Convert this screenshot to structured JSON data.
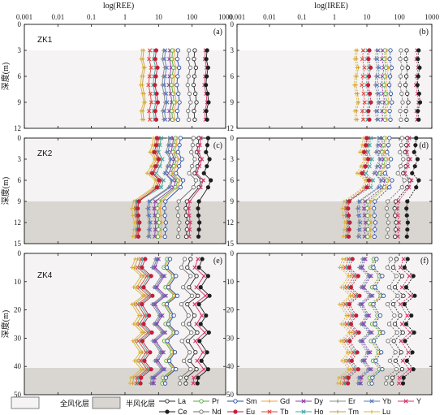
{
  "chart_data": {
    "type": "line",
    "top_axis_labels": [
      "log(REE)",
      "log(IREE)"
    ],
    "x_ticks": [
      "0.001",
      "0.01",
      "0.1",
      "1",
      "10",
      "100",
      "1000"
    ],
    "x_tick_values": [
      0.001,
      0.01,
      0.1,
      1,
      10,
      100,
      1000
    ],
    "xlim": [
      0.001,
      1000
    ],
    "x_scale": "log",
    "ylabel": "深度(m)",
    "rows": [
      {
        "hole": "ZK1",
        "ylim": [
          0,
          12
        ],
        "yticks": [
          0,
          3,
          6,
          9,
          12
        ],
        "weak_from": 12
      },
      {
        "hole": "ZK2",
        "ylim": [
          0,
          15
        ],
        "yticks": [
          0,
          3,
          6,
          9,
          12,
          15
        ],
        "weak_from": 9
      },
      {
        "hole": "ZK4",
        "ylim": [
          0,
          50
        ],
        "yticks": [
          0,
          10,
          20,
          30,
          40,
          50
        ],
        "weak_from": 40.5
      }
    ],
    "panel_labels": [
      "(a)",
      "(b)",
      "(c)",
      "(d)",
      "(e)",
      "(f)"
    ],
    "zone_legend": [
      {
        "label": "全风化层",
        "color": "#f5f3f3"
      },
      {
        "label": "半风化层",
        "color": "#d9d6d1"
      }
    ],
    "series_legend": [
      {
        "name": "La",
        "color": "#2b2b2b",
        "marker": "circle-open"
      },
      {
        "name": "Pr",
        "color": "#55a83c",
        "marker": "circle-open"
      },
      {
        "name": "Sm",
        "color": "#2a4f9e",
        "marker": "circle-open"
      },
      {
        "name": "Gd",
        "color": "#e8a63a",
        "marker": "plus"
      },
      {
        "name": "Dy",
        "color": "#8e3fa6",
        "marker": "x"
      },
      {
        "name": "Er",
        "color": "#8a8a8a",
        "marker": "plus"
      },
      {
        "name": "Yb",
        "color": "#5a78b8",
        "marker": "x"
      },
      {
        "name": "Y",
        "color": "#d6336b",
        "marker": "x"
      },
      {
        "name": "Ce",
        "color": "#1e1e1e",
        "marker": "circle-filled"
      },
      {
        "name": "Nd",
        "color": "#6e6e6e",
        "marker": "circle-open"
      },
      {
        "name": "Eu",
        "color": "#c21f3a",
        "marker": "circle-filled"
      },
      {
        "name": "Tb",
        "color": "#e0463f",
        "marker": "x"
      },
      {
        "name": "Ho",
        "color": "#3fa9a0",
        "marker": "x"
      },
      {
        "name": "Tm",
        "color": "#caa23a",
        "marker": "plus"
      },
      {
        "name": "Lu",
        "color": "#e0b43a",
        "marker": "plus"
      }
    ],
    "series_order": [
      "Lu",
      "Tm",
      "Tb",
      "Ho",
      "Eu",
      "Er",
      "Yb",
      "Dy",
      "Pr",
      "Gd",
      "Sm",
      "Nd",
      "La",
      "Y",
      "Ce"
    ],
    "zk1_depths": [
      3,
      4,
      5,
      6,
      7,
      8,
      9,
      10,
      11
    ],
    "zk2_depths": [
      0,
      1,
      2,
      3,
      4,
      5,
      6,
      7,
      9,
      10,
      11,
      12,
      13,
      14
    ],
    "zk4_depths": [
      2,
      5,
      8,
      12,
      15,
      18,
      22,
      25,
      28,
      31,
      35,
      38,
      41,
      44,
      46
    ],
    "zk1_ree": {
      "Lu": [
        3.2,
        3.0,
        3.5,
        3.1,
        2.9,
        3.3,
        3.6,
        3.0,
        3.2
      ],
      "Tm": [
        3.6,
        3.4,
        3.9,
        3.5,
        3.3,
        3.7,
        4.0,
        3.4,
        3.6
      ],
      "Tb": [
        5.5,
        5.2,
        6.0,
        5.4,
        5.0,
        5.7,
        6.1,
        5.2,
        5.5
      ],
      "Ho": [
        7.5,
        7.1,
        8.2,
        7.3,
        6.9,
        7.8,
        8.4,
        7.1,
        7.5
      ],
      "Eu": [
        8.5,
        8.0,
        9.3,
        8.3,
        7.8,
        8.8,
        9.5,
        8.0,
        8.5
      ],
      "Er": [
        14,
        13,
        15,
        13.5,
        12.8,
        14.5,
        15.5,
        13,
        14
      ],
      "Yb": [
        16,
        15,
        17.5,
        15.5,
        14.8,
        16.8,
        18,
        15,
        16
      ],
      "Dy": [
        22,
        21,
        24,
        21.5,
        20.5,
        23,
        25,
        21,
        22
      ],
      "Pr": [
        26,
        25,
        28,
        25.5,
        24.5,
        27,
        29,
        25,
        26
      ],
      "Gd": [
        30,
        28,
        33,
        29.5,
        28,
        31,
        34,
        28,
        30
      ],
      "Sm": [
        38,
        36,
        41,
        37,
        35,
        39,
        42,
        36,
        38
      ],
      "Nd": [
        80,
        76,
        88,
        78,
        74,
        84,
        90,
        76,
        80
      ],
      "La": [
        120,
        114,
        130,
        117,
        111,
        125,
        135,
        114,
        120
      ],
      "Y": [
        250,
        240,
        270,
        245,
        232,
        260,
        280,
        240,
        250
      ],
      "Ce": [
        280,
        265,
        300,
        272,
        258,
        290,
        310,
        265,
        280
      ]
    },
    "zk2_ree": {
      "Lu": [
        7,
        6.5,
        5.5,
        7.5,
        6,
        4.5,
        8,
        7,
        1.8,
        1.6,
        1.7,
        1.9,
        1.8,
        1.7
      ],
      "Tm": [
        8,
        7.5,
        6.5,
        8.5,
        7,
        5.5,
        9,
        8,
        2.1,
        1.9,
        2.0,
        2.2,
        2.1,
        2.0
      ],
      "Tb": [
        10,
        9.5,
        8.5,
        11,
        9,
        7,
        12,
        10,
        2.3,
        2.1,
        2.2,
        2.4,
        2.3,
        2.2
      ],
      "Ho": [
        12,
        11,
        10,
        13,
        11,
        8.5,
        14,
        12,
        2.4,
        2.2,
        2.3,
        2.5,
        2.4,
        2.3
      ],
      "Eu": [
        9,
        8.5,
        7.5,
        10,
        8.2,
        6.5,
        10.5,
        9,
        2.6,
        2.4,
        2.5,
        2.7,
        2.6,
        2.5
      ],
      "Er": [
        20,
        19,
        17,
        22,
        18,
        15,
        24,
        20,
        5,
        4.6,
        4.8,
        5.2,
        5,
        4.8
      ],
      "Yb": [
        22,
        21,
        19,
        24,
        20,
        16,
        26,
        22,
        5.5,
        5.1,
        5.3,
        5.7,
        5.5,
        5.3
      ],
      "Dy": [
        28,
        26,
        24,
        30,
        25,
        20,
        33,
        28,
        8,
        7.4,
        7.7,
        8.3,
        8,
        7.7
      ],
      "Pr": [
        32,
        30,
        27,
        35,
        29,
        23,
        38,
        32,
        10,
        9.3,
        9.6,
        10.4,
        10,
        9.6
      ],
      "Gd": [
        36,
        34,
        31,
        40,
        33,
        26,
        43,
        36,
        12,
        11.2,
        11.6,
        12.5,
        12,
        11.6
      ],
      "Sm": [
        45,
        42,
        38,
        50,
        41,
        33,
        54,
        45,
        16,
        15,
        15.5,
        16.5,
        16,
        15.5
      ],
      "Nd": [
        110,
        104,
        95,
        120,
        100,
        82,
        130,
        110,
        40,
        37,
        38.5,
        41.5,
        40,
        38.5
      ],
      "La": [
        160,
        150,
        138,
        175,
        145,
        120,
        190,
        160,
        70,
        65,
        67,
        72,
        70,
        67
      ],
      "Y": [
        180,
        170,
        155,
        195,
        165,
        135,
        215,
        180,
        85,
        79,
        82,
        88,
        85,
        82
      ],
      "Ce": [
        300,
        285,
        260,
        330,
        275,
        225,
        360,
        300,
        160,
        150,
        155,
        165,
        160,
        155
      ]
    },
    "zk4_ree": {
      "Lu": [
        2.0,
        1.6,
        3.0,
        1.8,
        3.4,
        1.6,
        2.6,
        1.8,
        3.2,
        1.7,
        2.8,
        1.9,
        3.0,
        1.5,
        1.4
      ],
      "Tm": [
        2.4,
        1.9,
        3.6,
        2.2,
        4.0,
        1.9,
        3.1,
        2.2,
        3.8,
        2.0,
        3.3,
        2.3,
        3.6,
        1.8,
        1.7
      ],
      "Tb": [
        3.0,
        2.4,
        4.5,
        2.7,
        5.0,
        2.4,
        3.9,
        2.7,
        4.8,
        2.5,
        4.2,
        2.9,
        4.5,
        2.3,
        2.2
      ],
      "Ho": [
        3.5,
        2.8,
        5.2,
        3.2,
        5.8,
        2.8,
        4.5,
        3.2,
        5.5,
        2.9,
        4.9,
        3.3,
        5.2,
        2.6,
        2.5
      ],
      "Eu": [
        4.0,
        3.2,
        6.0,
        3.6,
        6.6,
        3.2,
        5.2,
        3.6,
        6.3,
        3.3,
        5.6,
        3.8,
        6.0,
        3.0,
        2.9
      ],
      "Er": [
        8,
        6.4,
        12,
        7.2,
        13.2,
        6.4,
        10.4,
        7.2,
        12.6,
        6.6,
        11.2,
        7.6,
        12,
        6,
        5.8
      ],
      "Yb": [
        9,
        7.2,
        13.5,
        8.1,
        14.8,
        7.2,
        11.7,
        8.1,
        14.2,
        7.4,
        12.6,
        8.5,
        13.5,
        6.8,
        6.5
      ],
      "Dy": [
        10,
        8,
        15,
        9,
        16.5,
        8,
        13,
        9,
        15.8,
        8.3,
        14,
        9.5,
        15,
        7.5,
        7.2
      ],
      "Pr": [
        18,
        14.4,
        27,
        16.2,
        29.7,
        14.4,
        23.4,
        16.2,
        28.4,
        14.9,
        25.2,
        17.1,
        27,
        13.5,
        13
      ],
      "Gd": [
        20,
        16,
        30,
        18,
        33,
        16,
        26,
        18,
        31.6,
        16.6,
        28,
        19,
        30,
        15,
        14.4
      ],
      "Sm": [
        22,
        17.6,
        33,
        19.8,
        36.3,
        17.6,
        28.6,
        19.8,
        34.8,
        18.3,
        30.8,
        20.9,
        33,
        16.5,
        15.8
      ],
      "Nd": [
        60,
        48,
        90,
        54,
        99,
        48,
        78,
        54,
        94.8,
        49.8,
        84,
        57,
        90,
        45,
        43
      ],
      "La": [
        90,
        72,
        135,
        81,
        148,
        72,
        117,
        81,
        142,
        75,
        126,
        85,
        135,
        68,
        65
      ],
      "Y": [
        150,
        120,
        225,
        135,
        248,
        120,
        195,
        135,
        237,
        125,
        210,
        142,
        225,
        112,
        108
      ],
      "Ce": [
        200,
        160,
        300,
        180,
        330,
        160,
        260,
        180,
        316,
        166,
        280,
        190,
        300,
        150,
        144
      ]
    }
  }
}
